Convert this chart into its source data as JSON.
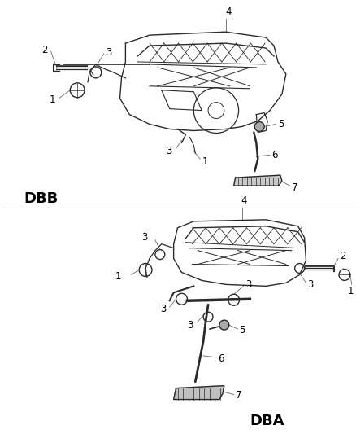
{
  "background_color": "#ffffff",
  "fig_width": 4.38,
  "fig_height": 5.33,
  "dpi": 100,
  "label_DBB": "DBB",
  "label_DBA": "DBA",
  "line_color": "#2a2a2a",
  "text_color": "#000000",
  "label_fontsize": 13,
  "label_fontweight": "bold",
  "part_label_fontsize": 8.5
}
